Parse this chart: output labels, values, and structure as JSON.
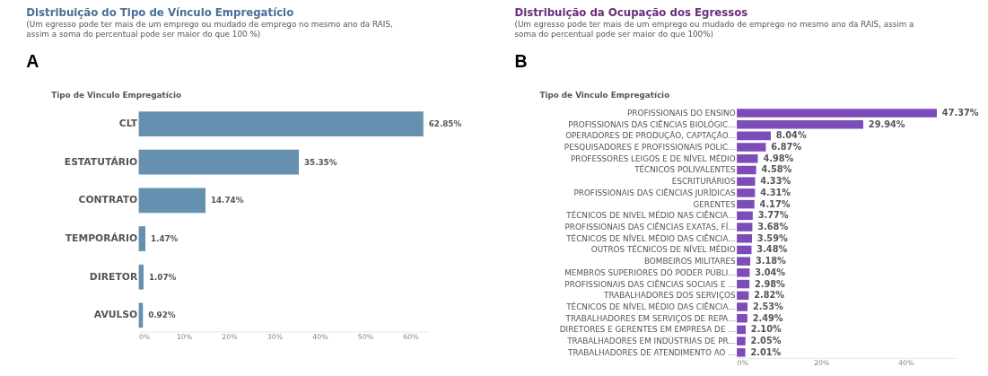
{
  "chart_data": [
    {
      "type": "bar",
      "orientation": "horizontal",
      "title": "Distribuição do Tipo de Vínculo Empregatício",
      "subtitle": "(Um egresso pode ter mais de um emprego ou mudado de emprego no mesmo ano da RAIS, assim a soma do percentual pode ser maior do que 100 %)",
      "ylabel": "Tipo de Vinculo Empregatício",
      "annotations": [
        "A"
      ],
      "categories": [
        "CLT",
        "ESTATUTÁRIO",
        "CONTRATO",
        "TEMPORÁRIO",
        "DIRETOR",
        "AVULSO"
      ],
      "values": [
        62.85,
        35.35,
        14.74,
        1.47,
        1.07,
        0.92
      ],
      "value_labels": [
        "62.85%",
        "35.35%",
        "14.74%",
        "1.47%",
        "1.07%",
        "0.92%"
      ],
      "color": "#6690b0",
      "xlim": [
        0,
        64
      ],
      "xticks": [
        {
          "value": 0,
          "label": "0%"
        },
        {
          "value": 10,
          "label": "10%"
        },
        {
          "value": 20,
          "label": "20%"
        },
        {
          "value": 30,
          "label": "30%"
        },
        {
          "value": 40,
          "label": "40%"
        },
        {
          "value": 50,
          "label": "50%"
        },
        {
          "value": 60,
          "label": "60%"
        }
      ],
      "grid": false,
      "legend": false
    },
    {
      "type": "bar",
      "orientation": "horizontal",
      "title": "Distribuição da Ocupação dos Egressos",
      "subtitle": "(Um egresso pode ter mais de um emprego ou mudado de emprego no mesmo ano da RAIS, assim a soma do percentual pode ser maior do que 100%)",
      "ylabel": "Tipo de Vinculo Empregatício",
      "annotations": [
        "B"
      ],
      "categories": [
        "PROFISSIONAIS DO ENSINO",
        "PROFISSIONAIS DAS CIÊNCIAS BIOLÓGIC...",
        "OPERADORES DE PRODUÇÃO, CAPTAÇÃO...",
        "PESQUISADORES E PROFISSIONAIS POLIC...",
        "PROFESSORES LEIGOS E DE NÍVEL MÉDIO",
        "TÉCNICOS POLIVALENTES",
        "ESCRITURÁRIOS",
        "PROFISSIONAIS DAS CIÊNCIAS JURÍDICAS",
        "GERENTES",
        "TÉCNICOS DE NIVEL MÉDIO NAS CIÊNCIA...",
        "PROFISSIONAIS DAS CIÊNCIAS EXATAS, FÍ...",
        "TÉCNICOS DE NÍVEL MÉDIO DAS CIÊNCIA...",
        "OUTROS TÉCNICOS DE NÍVEL MÉDIO",
        "BOMBEIROS MILITARES",
        "MEMBROS SUPERIORES DO PODER PÚBLI...",
        "PROFISSIONAIS DAS CIÊNCIAS SOCIAIS E ...",
        "TRABALHADORES DOS SERVIÇOS",
        "TÉCNICOS DE NÍVEL MÉDIO DAS CIÊNCIA...",
        "TRABALHADORES EM SERVIÇOS DE REPA...",
        "DIRETORES E GERENTES EM EMPRESA DE ...",
        "TRABALHADORES EM INDÚSTRIAS DE PR...",
        "TRABALHADORES DE ATENDIMENTO AO ..."
      ],
      "values": [
        47.37,
        29.94,
        8.04,
        6.87,
        4.98,
        4.58,
        4.33,
        4.31,
        4.17,
        3.77,
        3.68,
        3.59,
        3.48,
        3.18,
        3.04,
        2.98,
        2.82,
        2.53,
        2.49,
        2.1,
        2.05,
        2.01
      ],
      "value_labels": [
        "47.37%",
        "29.94%",
        "8.04%",
        "6.87%",
        "4.98%",
        "4.58%",
        "4.33%",
        "4.31%",
        "4.17%",
        "3.77%",
        "3.68%",
        "3.59%",
        "3.48%",
        "3.18%",
        "3.04%",
        "2.98%",
        "2.82%",
        "2.53%",
        "2.49%",
        "2.10%",
        "2.05%",
        "2.01%"
      ],
      "color": "#7e4bbb",
      "xlim": [
        0,
        52
      ],
      "xticks": [
        {
          "value": 0,
          "label": "0%"
        },
        {
          "value": 20,
          "label": "20%"
        },
        {
          "value": 40,
          "label": "40%"
        }
      ],
      "grid": false,
      "legend": false
    }
  ]
}
